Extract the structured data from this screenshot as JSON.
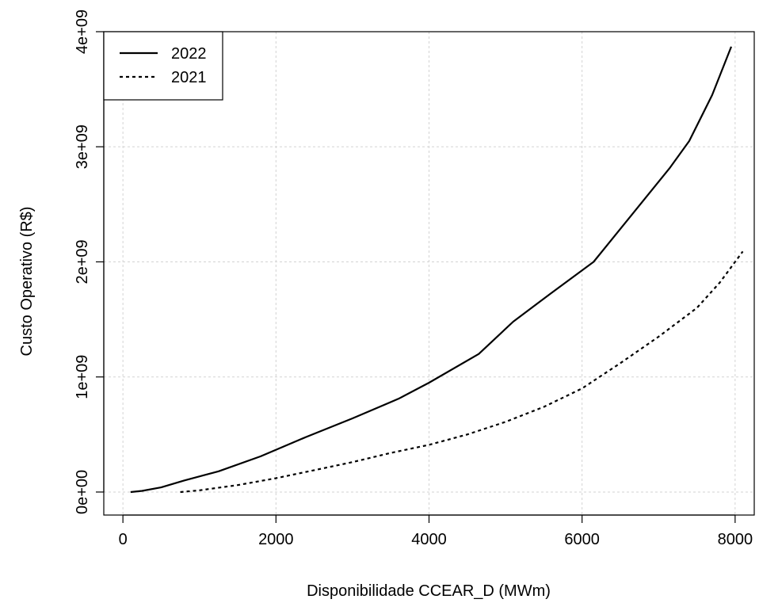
{
  "chart_data": {
    "type": "line",
    "xlabel": "Disponibilidade CCEAR_D (MWm)",
    "ylabel": "Custo Operativo (R$)",
    "xlim": [
      -250,
      8250
    ],
    "ylim": [
      -200000000,
      4000000000
    ],
    "x_ticks": [
      0,
      2000,
      4000,
      6000,
      8000
    ],
    "x_tick_labels": [
      "0",
      "2000",
      "4000",
      "6000",
      "8000"
    ],
    "y_ticks": [
      0,
      1000000000,
      2000000000,
      3000000000,
      4000000000
    ],
    "y_tick_labels": [
      "0e+00",
      "1e+09",
      "2e+09",
      "3e+09",
      "4e+09"
    ],
    "grid": true,
    "legend_position": "top-left",
    "series": [
      {
        "name": "2022",
        "line_style": "solid",
        "x": [
          100,
          250,
          500,
          800,
          1250,
          1800,
          2400,
          3000,
          3600,
          4000,
          4650,
          5100,
          5600,
          6150,
          6700,
          7150,
          7400,
          7700,
          7950
        ],
        "y": [
          0,
          10000000,
          40000000,
          100000000,
          180000000,
          310000000,
          480000000,
          640000000,
          810000000,
          950000000,
          1200000000,
          1480000000,
          1730000000,
          2000000000,
          2450000000,
          2820000000,
          3050000000,
          3450000000,
          3870000000
        ]
      },
      {
        "name": "2021",
        "line_style": "dashed",
        "x": [
          750,
          1000,
          1500,
          2000,
          2500,
          3000,
          3500,
          4000,
          4500,
          5000,
          5500,
          6000,
          6500,
          7000,
          7500,
          7800,
          8100
        ],
        "y": [
          0,
          15000000,
          60000000,
          120000000,
          190000000,
          260000000,
          340000000,
          410000000,
          500000000,
          610000000,
          740000000,
          900000000,
          1120000000,
          1350000000,
          1600000000,
          1820000000,
          2090000000
        ]
      }
    ]
  }
}
